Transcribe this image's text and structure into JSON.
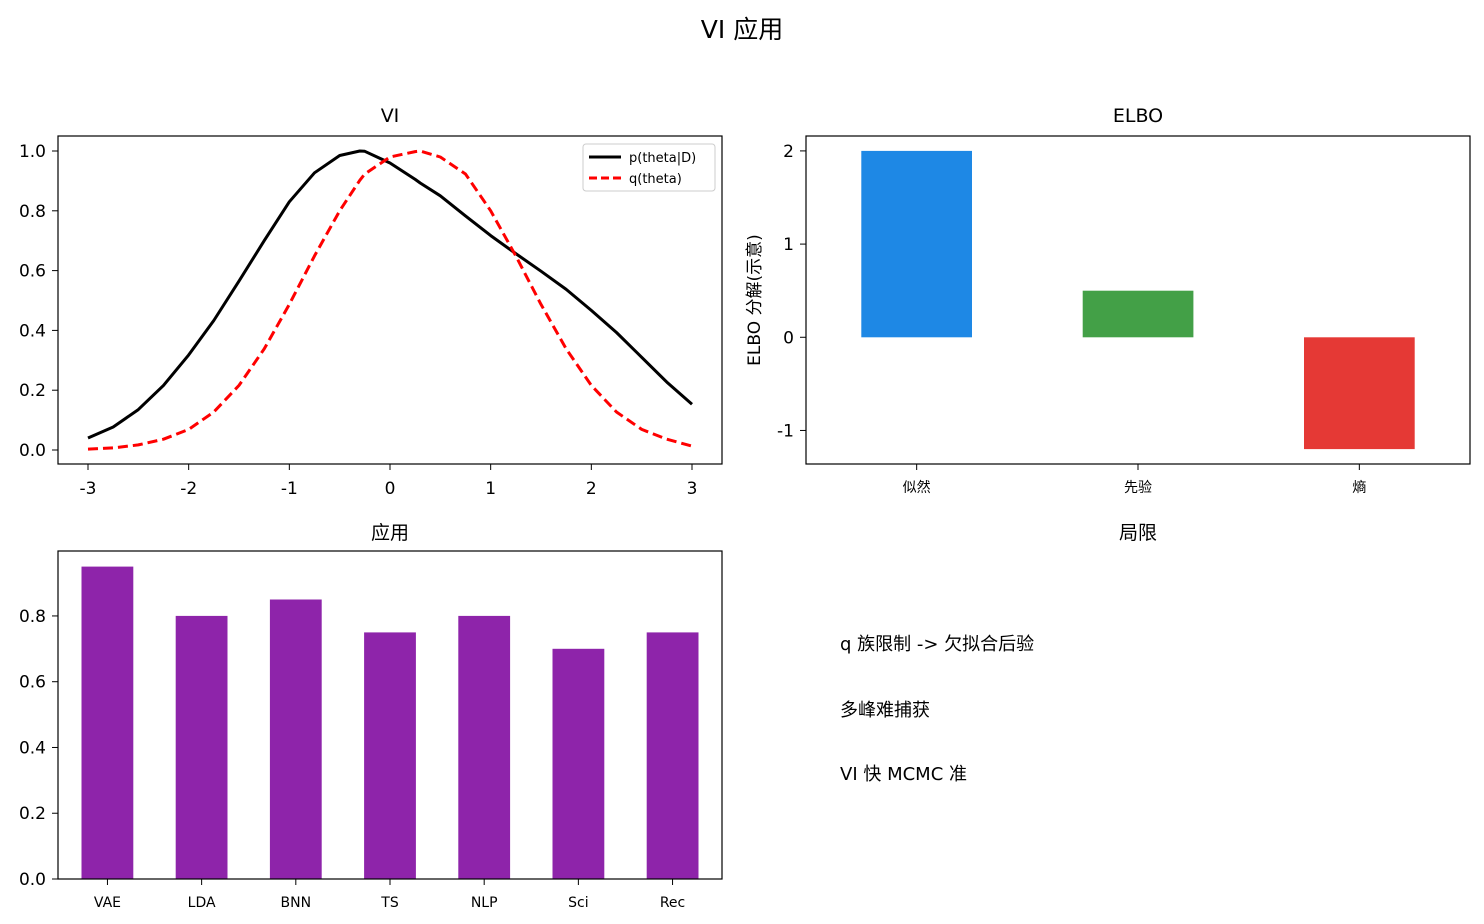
{
  "figure": {
    "title": "VI 应用"
  },
  "panel_titles": {
    "vi": "VI",
    "elbo": "ELBO",
    "apps": "应用",
    "limits": "局限"
  },
  "limits_notes": [
    "q 族限制 -> 欠拟合后验",
    "多峰难捕获",
    "VI 快 MCMC 准"
  ],
  "chart_data": [
    {
      "id": "vi",
      "type": "line",
      "title": "VI",
      "xlim": [
        -3,
        3
      ],
      "ylim": [
        -0.05,
        1.05
      ],
      "xticks": [
        -3,
        -2,
        -1,
        0,
        1,
        2,
        3
      ],
      "yticks": [
        0.0,
        0.2,
        0.4,
        0.6,
        0.8,
        1.0
      ],
      "legend_position": "upper right",
      "x": [
        -3.0,
        -2.75,
        -2.5,
        -2.25,
        -2.0,
        -1.75,
        -1.5,
        -1.25,
        -1.0,
        -0.75,
        -0.5,
        -0.3,
        -0.25,
        0.0,
        0.25,
        0.3,
        0.5,
        0.75,
        1.0,
        1.25,
        1.5,
        1.75,
        2.0,
        2.25,
        2.5,
        2.75,
        3.0
      ],
      "series": [
        {
          "name": "p(theta|D)",
          "color": "#000000",
          "style": "solid",
          "values": [
            0.04,
            0.077,
            0.135,
            0.216,
            0.318,
            0.433,
            0.565,
            0.7,
            0.83,
            0.927,
            0.985,
            1.0,
            0.999,
            0.96,
            0.905,
            0.893,
            0.85,
            0.783,
            0.717,
            0.657,
            0.598,
            0.537,
            0.467,
            0.393,
            0.31,
            0.227,
            0.153
          ]
        },
        {
          "name": "q(theta)",
          "color": "#ff0000",
          "style": "dashed",
          "values": [
            0.003,
            0.007,
            0.017,
            0.036,
            0.069,
            0.127,
            0.216,
            0.338,
            0.487,
            0.649,
            0.8,
            0.902,
            0.923,
            0.98,
            0.998,
            1.0,
            0.98,
            0.923,
            0.8,
            0.649,
            0.487,
            0.338,
            0.216,
            0.127,
            0.069,
            0.036,
            0.013
          ]
        }
      ]
    },
    {
      "id": "elbo",
      "type": "bar",
      "title": "ELBO",
      "ylabel": "ELBO 分解(示意)",
      "categories": [
        "似然",
        "先验",
        "熵"
      ],
      "values": [
        2.0,
        0.5,
        -1.2
      ],
      "colors": [
        "#1e88e5",
        "#43a047",
        "#e53935"
      ],
      "ylim": [
        -1.36,
        2.16
      ],
      "yticks": [
        -1,
        0,
        1,
        2
      ]
    },
    {
      "id": "apps",
      "type": "bar",
      "title": "应用",
      "categories": [
        "VAE",
        "LDA",
        "BNN",
        "TS",
        "NLP",
        "Sci",
        "Rec"
      ],
      "values": [
        0.95,
        0.8,
        0.85,
        0.75,
        0.8,
        0.7,
        0.75
      ],
      "color": "#8e24aa",
      "ylim": [
        0.0,
        0.9975
      ],
      "yticks": [
        0.0,
        0.2,
        0.4,
        0.6,
        0.8
      ]
    }
  ]
}
